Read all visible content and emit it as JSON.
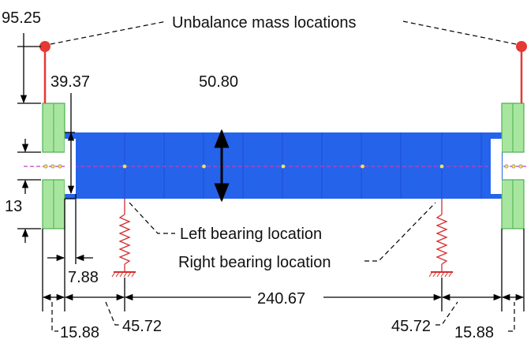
{
  "colors": {
    "shaft": "#2563eb",
    "shaft_dark": "#1d4ed8",
    "disk": "#a8e6a0",
    "disk_edge": "#4caf50",
    "unbalance": "#e53935",
    "spring": "#d32f2f",
    "centerline": "#c040c0",
    "node": "#f0e050"
  },
  "labels": {
    "unbalance": "Unbalance mass locations",
    "left_bearing": "Left bearing location",
    "right_bearing": "Right bearing location"
  },
  "dimensions": {
    "unbalance_radius": "95.25",
    "disk_inner": "39.37",
    "shaft_diameter": "50.80",
    "hub_gap": "13",
    "disk_gap": "7.88",
    "disk_width_left": "15.88",
    "bearing_offset_left": "45.72",
    "bearing_span": "240.67",
    "bearing_offset_right": "45.72",
    "disk_width_right": "15.88"
  },
  "nodes": {
    "count": 5
  }
}
